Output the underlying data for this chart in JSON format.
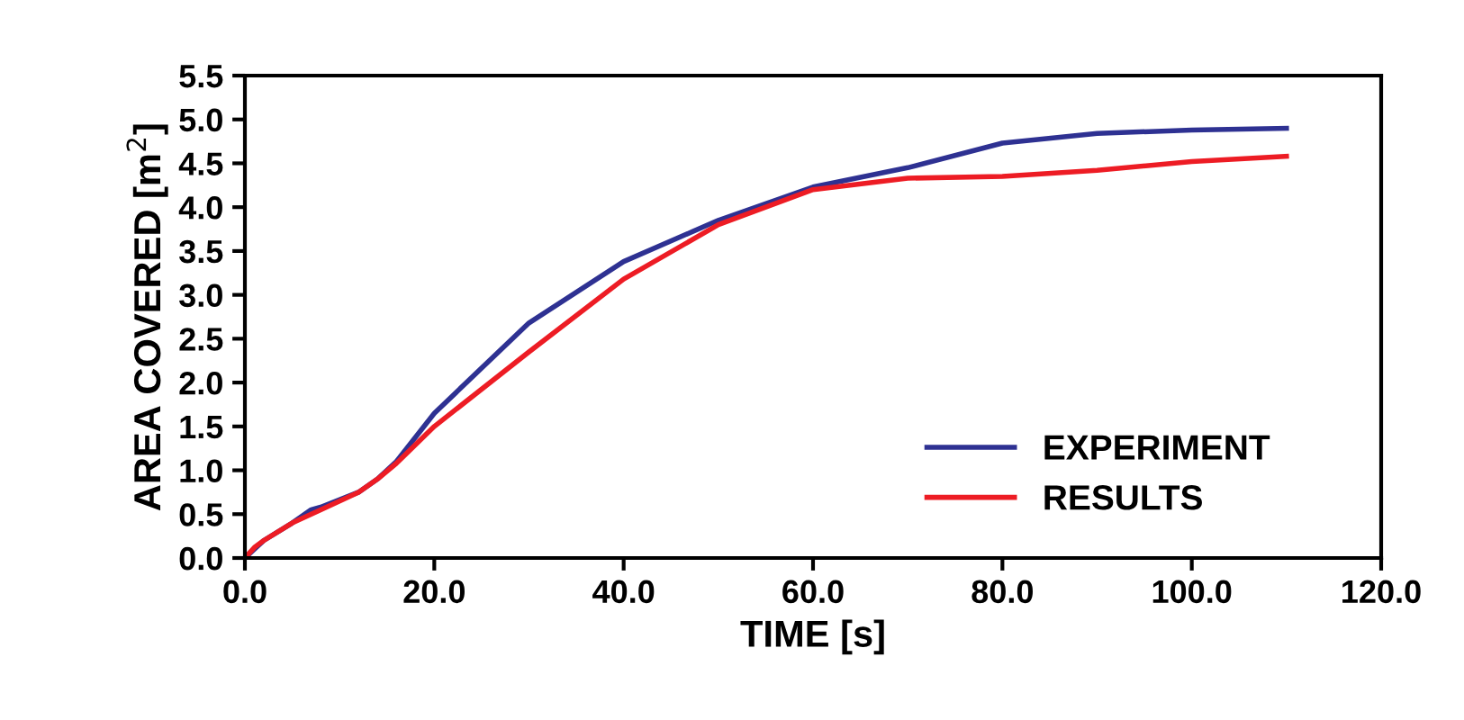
{
  "chart_data": {
    "type": "line",
    "xlabel": "TIME [s]",
    "ylabel": "AREA COVERED [m$^{2}$]",
    "xlim": [
      0,
      120
    ],
    "xticks": [
      {
        "value": 0,
        "label": "0.0"
      },
      {
        "value": 20,
        "label": "20.0"
      },
      {
        "value": 40,
        "label": "40.0"
      },
      {
        "value": 60,
        "label": "60.0"
      },
      {
        "value": 80,
        "label": "80.0"
      },
      {
        "value": 100,
        "label": "100.0"
      },
      {
        "value": 120,
        "label": "120.0"
      }
    ],
    "ylim": [
      0,
      5.5
    ],
    "yticks": [
      {
        "value": 0,
        "label": "0.0"
      },
      {
        "value": 0.5,
        "label": "0.5"
      },
      {
        "value": 1,
        "label": "1.0"
      },
      {
        "value": 1.5,
        "label": "1.5"
      },
      {
        "value": 2,
        "label": "2.0"
      },
      {
        "value": 2.5,
        "label": "2.5"
      },
      {
        "value": 3,
        "label": "3.0"
      },
      {
        "value": 3.5,
        "label": "3.5"
      },
      {
        "value": 4,
        "label": "4.0"
      },
      {
        "value": 4.5,
        "label": "4.5"
      },
      {
        "value": 5,
        "label": "5.0"
      },
      {
        "value": 5.5,
        "label": "5.5"
      }
    ],
    "grid": false,
    "legend": "bottom right",
    "marker": "none",
    "line_style": "solid",
    "series": [
      {
        "name": "EXPERIMENT",
        "color": "#2e3192",
        "x": [
          0,
          1,
          2,
          5,
          7,
          8,
          12,
          14,
          16,
          20,
          30,
          40,
          50,
          60,
          70,
          80,
          90,
          100,
          110
        ],
        "values": [
          0,
          0.1,
          0.2,
          0.4,
          0.55,
          0.58,
          0.75,
          0.9,
          1.1,
          1.65,
          2.68,
          3.38,
          3.85,
          4.23,
          4.45,
          4.73,
          4.84,
          4.88,
          4.9
        ]
      },
      {
        "name": "RESULTS",
        "color": "#ed1c24",
        "x": [
          0,
          1,
          2,
          5,
          8,
          12,
          14,
          16,
          20,
          30,
          40,
          50,
          60,
          70,
          80,
          90,
          100,
          110
        ],
        "values": [
          0,
          0.12,
          0.2,
          0.4,
          0.55,
          0.75,
          0.9,
          1.08,
          1.5,
          2.35,
          3.18,
          3.8,
          4.2,
          4.33,
          4.35,
          4.42,
          4.52,
          4.58
        ]
      }
    ]
  }
}
